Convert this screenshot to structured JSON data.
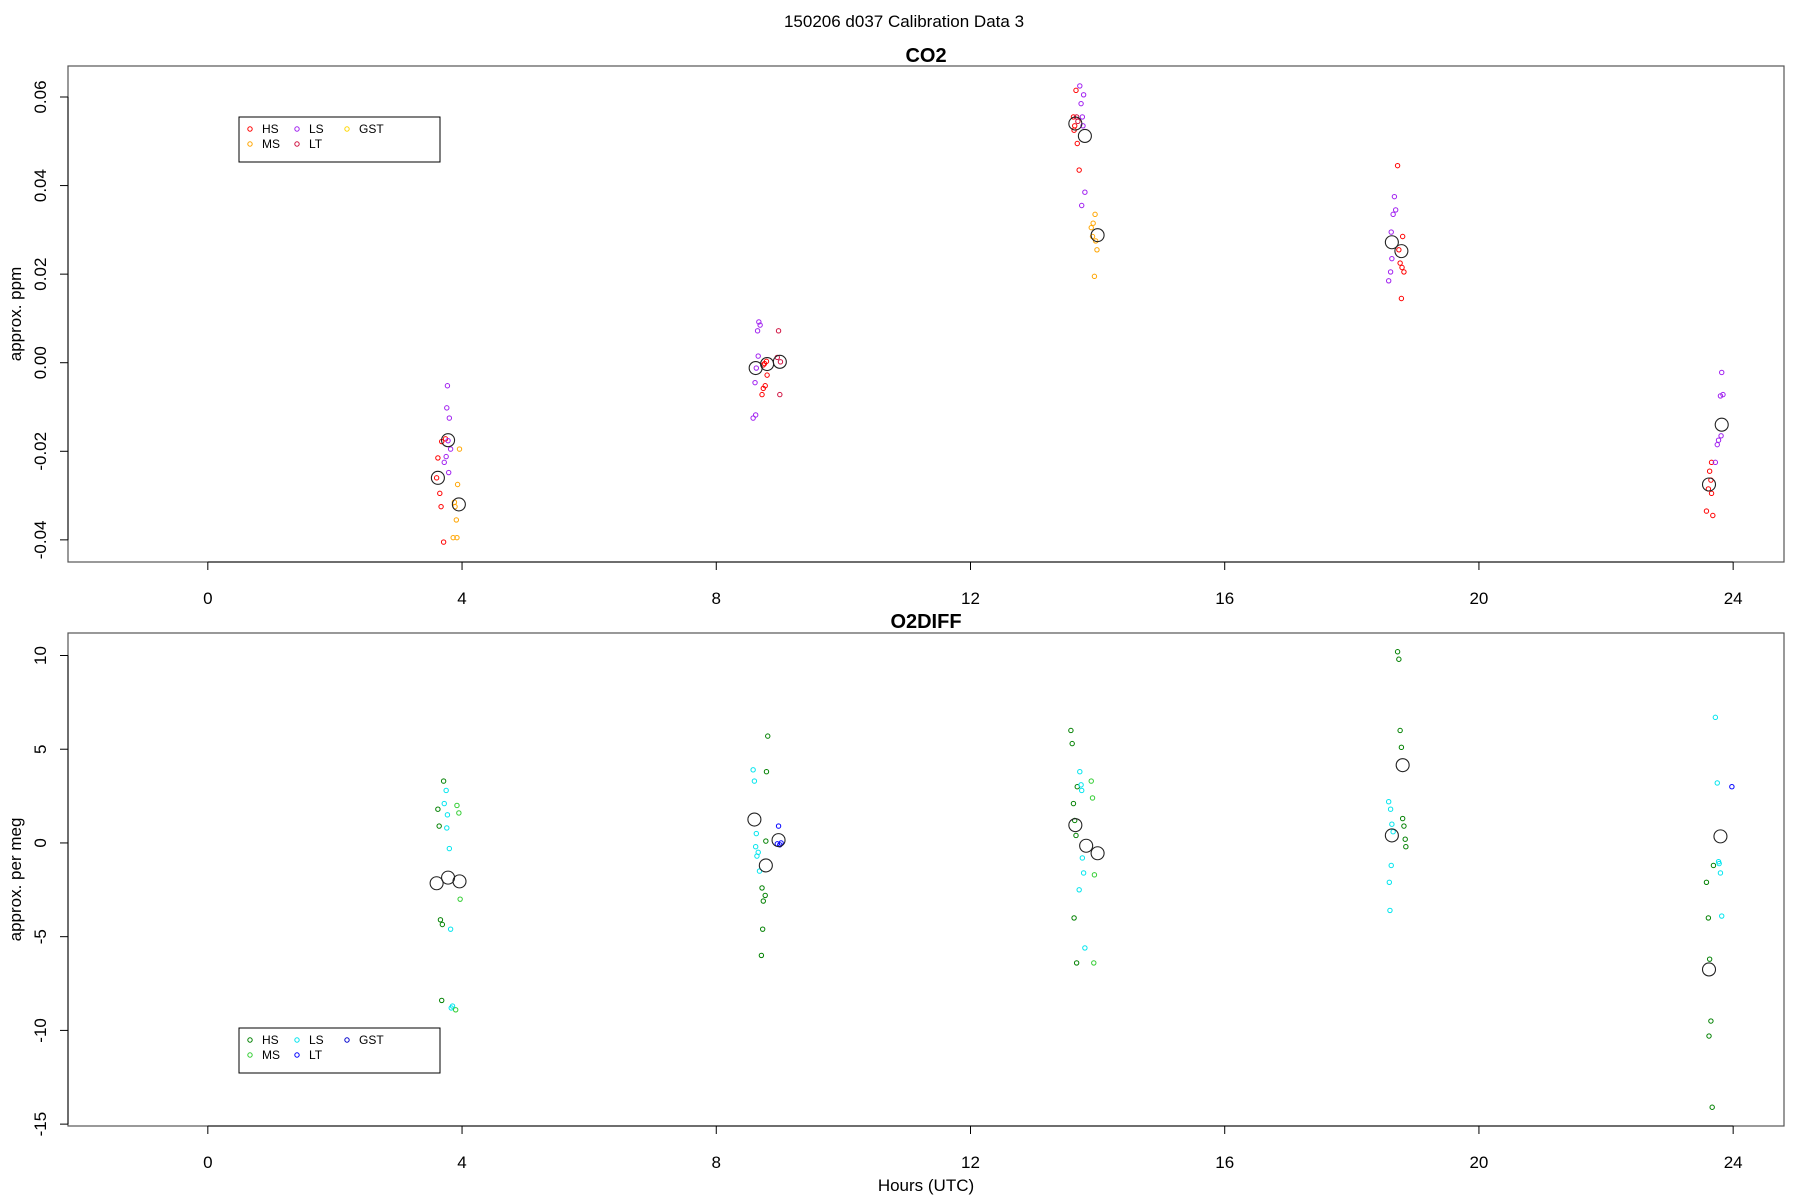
{
  "main_title": "150206   d037   Calibration Data 3",
  "chart_data": [
    {
      "type": "scatter",
      "title": "CO2",
      "xlabel": "",
      "ylabel": "approx. ppm",
      "xlim": [
        -2.2,
        24.8
      ],
      "ylim": [
        -0.045,
        0.067
      ],
      "xticks": [
        0,
        4,
        8,
        12,
        16,
        20,
        24
      ],
      "yticks": [
        -0.04,
        -0.02,
        0.0,
        0.02,
        0.04,
        0.06
      ],
      "ytick_labels": [
        "-0.04",
        "-0.02",
        "0.00",
        "0.02",
        "0.04",
        "0.06"
      ],
      "grid": false,
      "legend_position": "top-left",
      "legend": [
        {
          "name": "HS",
          "color": "#ff0000"
        },
        {
          "name": "LS",
          "color": "#a020f0"
        },
        {
          "name": "GST",
          "color": "#ffd700"
        },
        {
          "name": "MS",
          "color": "#ffa500"
        },
        {
          "name": "LT",
          "color": "#d01040"
        }
      ],
      "series": [
        {
          "name": "HS",
          "color": "#ff0000",
          "points": [
            [
              3.62,
              -0.0215
            ],
            [
              3.65,
              -0.0295
            ],
            [
              3.67,
              -0.0325
            ],
            [
              3.68,
              -0.0178
            ],
            [
              3.71,
              -0.0405
            ],
            [
              3.74,
              -0.0172
            ],
            [
              3.6,
              -0.026
            ],
            [
              8.72,
              -0.0072
            ],
            [
              8.74,
              -0.0058
            ],
            [
              8.76,
              -0.0002
            ],
            [
              8.79,
              0.0003
            ],
            [
              8.8,
              -0.0028
            ],
            [
              8.77,
              -0.0052
            ],
            [
              8.74,
              -0.0005
            ],
            [
              13.62,
              0.0555
            ],
            [
              13.64,
              0.0535
            ],
            [
              13.66,
              0.0615
            ],
            [
              13.68,
              0.0495
            ],
            [
              13.71,
              0.0435
            ],
            [
              13.63,
              0.0525
            ],
            [
              18.72,
              0.0445
            ],
            [
              18.74,
              0.0255
            ],
            [
              18.76,
              0.0225
            ],
            [
              18.78,
              0.0145
            ],
            [
              18.79,
              0.0215
            ],
            [
              18.8,
              0.0285
            ],
            [
              18.82,
              0.0205
            ],
            [
              23.58,
              -0.0335
            ],
            [
              23.61,
              -0.0285
            ],
            [
              23.63,
              -0.0245
            ],
            [
              23.65,
              -0.0265
            ],
            [
              23.66,
              -0.0225
            ],
            [
              23.68,
              -0.0345
            ],
            [
              23.66,
              -0.0295
            ]
          ]
        },
        {
          "name": "LS",
          "color": "#a020f0",
          "points": [
            [
              3.72,
              -0.0225
            ],
            [
              3.75,
              -0.0212
            ],
            [
              3.77,
              -0.0052
            ],
            [
              3.8,
              -0.0125
            ],
            [
              3.82,
              -0.0195
            ],
            [
              3.79,
              -0.0248
            ],
            [
              3.76,
              -0.0102
            ],
            [
              3.78,
              -0.0176
            ],
            [
              8.58,
              -0.0125
            ],
            [
              8.61,
              -0.0045
            ],
            [
              8.63,
              -0.0012
            ],
            [
              8.65,
              0.0072
            ],
            [
              8.67,
              0.0092
            ],
            [
              8.69,
              0.0085
            ],
            [
              8.66,
              0.0015
            ],
            [
              8.62,
              -0.0118
            ],
            [
              13.72,
              0.0625
            ],
            [
              13.74,
              0.0585
            ],
            [
              13.76,
              0.0555
            ],
            [
              13.78,
              0.0605
            ],
            [
              13.8,
              0.0385
            ],
            [
              13.75,
              0.0355
            ],
            [
              13.77,
              0.0535
            ],
            [
              18.58,
              0.0185
            ],
            [
              18.61,
              0.0205
            ],
            [
              18.63,
              0.0235
            ],
            [
              18.65,
              0.0335
            ],
            [
              18.67,
              0.0375
            ],
            [
              18.69,
              0.0345
            ],
            [
              18.62,
              0.0295
            ],
            [
              23.72,
              -0.0225
            ],
            [
              23.75,
              -0.0185
            ],
            [
              23.77,
              -0.0175
            ],
            [
              23.8,
              -0.0075
            ],
            [
              23.82,
              -0.0022
            ],
            [
              23.84,
              -0.0072
            ],
            [
              23.81,
              -0.0165
            ]
          ]
        },
        {
          "name": "MS",
          "color": "#ffa500",
          "points": [
            [
              3.86,
              -0.0395
            ],
            [
              3.89,
              -0.0325
            ],
            [
              3.91,
              -0.0355
            ],
            [
              3.93,
              -0.0275
            ],
            [
              3.96,
              -0.0195
            ],
            [
              3.92,
              -0.0395
            ],
            [
              3.88,
              -0.0315
            ],
            [
              13.9,
              0.0305
            ],
            [
              13.93,
              0.0315
            ],
            [
              13.95,
              0.0195
            ],
            [
              13.97,
              0.0275
            ],
            [
              13.99,
              0.0255
            ],
            [
              13.96,
              0.0335
            ],
            [
              13.92,
              0.0285
            ]
          ]
        },
        {
          "name": "LT",
          "color": "#d01040",
          "points": [
            [
              8.98,
              0.0072
            ],
            [
              9.0,
              -0.0072
            ],
            [
              9.01,
              0.0002
            ],
            [
              8.96,
              0.0012
            ],
            [
              13.67,
              0.0555
            ],
            [
              13.69,
              0.0545
            ]
          ]
        },
        {
          "name": "GST",
          "color": "#ffd700",
          "points": []
        }
      ],
      "means": [
        [
          3.62,
          -0.026
        ],
        [
          3.78,
          -0.0175
        ],
        [
          3.95,
          -0.032
        ],
        [
          8.62,
          -0.0012
        ],
        [
          8.8,
          -0.0003
        ],
        [
          9.0,
          0.0002
        ],
        [
          13.65,
          0.054
        ],
        [
          13.8,
          0.0512
        ],
        [
          14.0,
          0.0288
        ],
        [
          18.63,
          0.0272
        ],
        [
          18.78,
          0.0252
        ],
        [
          23.62,
          -0.0275
        ],
        [
          23.82,
          -0.014
        ]
      ]
    },
    {
      "type": "scatter",
      "title": "O2DIFF",
      "xlabel": "Hours (UTC)",
      "ylabel": "approx. per meg",
      "xlim": [
        -2.2,
        24.8
      ],
      "ylim": [
        -15.1,
        11.2
      ],
      "xticks": [
        0,
        4,
        8,
        12,
        16,
        20,
        24
      ],
      "yticks": [
        -15,
        -10,
        -5,
        0,
        5,
        10
      ],
      "ytick_labels": [
        "-15",
        "-10",
        "-5",
        "0",
        "5",
        "10"
      ],
      "grid": false,
      "legend_position": "bottom-left",
      "legend": [
        {
          "name": "HS",
          "color": "#008000"
        },
        {
          "name": "LS",
          "color": "#00e5ee"
        },
        {
          "name": "GST",
          "color": "#0000cd"
        },
        {
          "name": "MS",
          "color": "#32cd32"
        },
        {
          "name": "LT",
          "color": "#0000ff"
        }
      ],
      "series": [
        {
          "name": "HS",
          "color": "#008000",
          "points": [
            [
              3.62,
              1.8
            ],
            [
              3.64,
              0.9
            ],
            [
              3.66,
              -4.1
            ],
            [
              3.69,
              -4.35
            ],
            [
              3.71,
              3.3
            ],
            [
              3.68,
              -8.4
            ],
            [
              8.72,
              -2.4
            ],
            [
              8.74,
              -3.1
            ],
            [
              8.77,
              -2.8
            ],
            [
              8.79,
              3.8
            ],
            [
              8.81,
              5.7
            ],
            [
              8.73,
              -4.6
            ],
            [
              8.71,
              -6.0
            ],
            [
              8.78,
              0.1
            ],
            [
              13.58,
              6.0
            ],
            [
              13.6,
              5.3
            ],
            [
              13.62,
              2.1
            ],
            [
              13.64,
              1.2
            ],
            [
              13.66,
              0.4
            ],
            [
              13.68,
              3.0
            ],
            [
              13.63,
              -4.0
            ],
            [
              13.67,
              -6.4
            ],
            [
              18.72,
              10.2
            ],
            [
              18.74,
              9.8
            ],
            [
              18.76,
              6.0
            ],
            [
              18.78,
              5.1
            ],
            [
              18.8,
              1.3
            ],
            [
              18.82,
              0.9
            ],
            [
              18.84,
              0.2
            ],
            [
              18.85,
              -0.2
            ],
            [
              23.58,
              -2.1
            ],
            [
              23.61,
              -4.0
            ],
            [
              23.63,
              -6.2
            ],
            [
              23.65,
              -9.5
            ],
            [
              23.62,
              -10.3
            ],
            [
              23.67,
              -14.1
            ],
            [
              23.69,
              -1.2
            ]
          ]
        },
        {
          "name": "LS",
          "color": "#00e5ee",
          "points": [
            [
              3.72,
              2.1
            ],
            [
              3.75,
              2.8
            ],
            [
              3.77,
              1.5
            ],
            [
              3.8,
              -0.3
            ],
            [
              3.76,
              0.8
            ],
            [
              3.82,
              -4.6
            ],
            [
              3.85,
              -8.7
            ],
            [
              3.83,
              -8.8
            ],
            [
              8.58,
              3.9
            ],
            [
              8.6,
              3.3
            ],
            [
              8.62,
              -0.2
            ],
            [
              8.64,
              -0.7
            ],
            [
              8.66,
              -0.5
            ],
            [
              8.68,
              -1.5
            ],
            [
              8.63,
              0.5
            ],
            [
              13.72,
              3.8
            ],
            [
              13.74,
              3.1
            ],
            [
              13.76,
              -0.8
            ],
            [
              13.78,
              -1.6
            ],
            [
              13.8,
              -5.6
            ],
            [
              13.75,
              2.8
            ],
            [
              13.71,
              -2.5
            ],
            [
              18.58,
              2.2
            ],
            [
              18.61,
              1.8
            ],
            [
              18.63,
              1.0
            ],
            [
              18.65,
              0.6
            ],
            [
              18.62,
              -1.2
            ],
            [
              18.59,
              -2.1
            ],
            [
              18.6,
              -3.6
            ],
            [
              23.72,
              6.7
            ],
            [
              23.75,
              3.2
            ],
            [
              23.77,
              -1.0
            ],
            [
              23.8,
              -1.6
            ],
            [
              23.82,
              -3.9
            ],
            [
              23.78,
              -1.1
            ]
          ]
        },
        {
          "name": "MS",
          "color": "#32cd32",
          "points": [
            [
              3.92,
              2.0
            ],
            [
              3.95,
              1.6
            ],
            [
              3.97,
              -3.0
            ],
            [
              3.9,
              -8.9
            ],
            [
              13.9,
              3.3
            ],
            [
              13.92,
              2.4
            ],
            [
              13.95,
              -1.7
            ],
            [
              13.94,
              -6.4
            ]
          ]
        },
        {
          "name": "LT",
          "color": "#0000ff",
          "points": [
            [
              8.98,
              0.9
            ],
            [
              9.0,
              -0.1
            ],
            [
              9.02,
              0.0
            ],
            [
              8.96,
              -0.05
            ],
            [
              23.98,
              3.0
            ]
          ]
        },
        {
          "name": "GST",
          "color": "#0000cd",
          "points": []
        }
      ],
      "means": [
        [
          3.6,
          -2.15
        ],
        [
          3.78,
          -1.85
        ],
        [
          3.96,
          -2.05
        ],
        [
          8.6,
          1.25
        ],
        [
          8.78,
          -1.2
        ],
        [
          8.98,
          0.15
        ],
        [
          13.65,
          0.95
        ],
        [
          13.82,
          -0.15
        ],
        [
          14.0,
          -0.55
        ],
        [
          18.63,
          0.4
        ],
        [
          18.8,
          4.15
        ],
        [
          23.62,
          -6.75
        ],
        [
          23.8,
          0.35
        ]
      ]
    }
  ]
}
